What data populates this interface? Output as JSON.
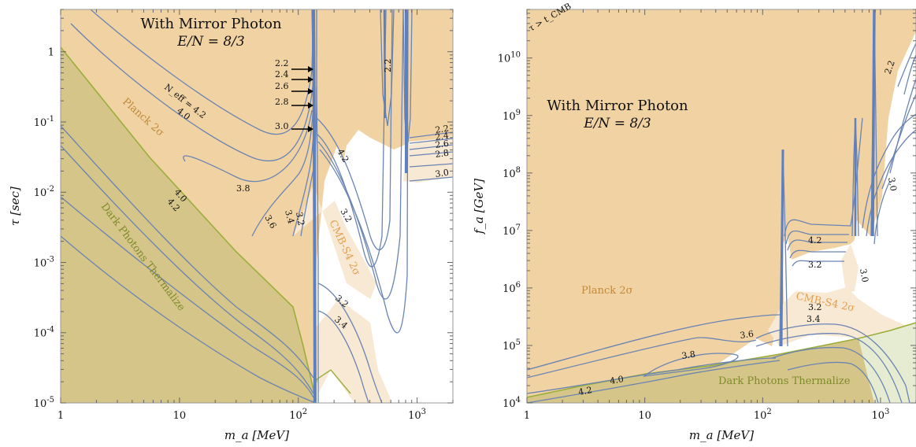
{
  "chart_data": [
    {
      "type": "area",
      "title": "With Mirror Photon",
      "subtitle": "E/N = 8/3",
      "xlabel": "m_a [MeV]",
      "ylabel": "τ [sec]",
      "xscale": "log",
      "yscale": "log",
      "xlim": [
        1,
        2000
      ],
      "ylim": [
        1e-05,
        4
      ],
      "x_ticks": [
        "1",
        "10",
        "10^2",
        "10^3"
      ],
      "y_ticks": [
        "10^-5",
        "10^-4",
        "10^-3",
        "10^-2",
        "10^-1",
        "1"
      ],
      "regions": [
        "Planck 2σ",
        "CMB-S4 2σ",
        "Dark Photons Thermalize"
      ],
      "contour_label": "N_eff = 4.2",
      "contour_levels": [
        "4.2",
        "4.0",
        "3.8",
        "3.6",
        "3.4",
        "3.2",
        "3.0",
        "2.8",
        "2.6",
        "2.4",
        "2.2"
      ],
      "arrow_labels": [
        "2.2",
        "2.4",
        "2.6",
        "2.8",
        "3.0"
      ],
      "colors": {
        "planck": "#f1d3a3",
        "cmb": "#f8e9d4",
        "thermal": "#d5c588",
        "contour": "#6a84b3",
        "green": "#9aae3a"
      }
    },
    {
      "type": "area",
      "title": "With Mirror Photon",
      "subtitle": "E/N = 8/3",
      "xlabel": "m_a [MeV]",
      "ylabel": "f_a [GeV]",
      "xscale": "log",
      "yscale": "log",
      "xlim": [
        1,
        2000
      ],
      "ylim": [
        10000,
        70000000000
      ],
      "x_ticks": [
        "1",
        "10",
        "10^2",
        "10^3"
      ],
      "y_ticks": [
        "10^4",
        "10^5",
        "10^6",
        "10^7",
        "10^8",
        "10^9",
        "10^10"
      ],
      "regions": [
        "Planck 2σ",
        "CMB-S4 2σ",
        "Dark Photons Thermalize"
      ],
      "corner_label": "τ > t_CMB",
      "contour_levels": [
        "4.2",
        "4.0",
        "3.8",
        "3.6",
        "3.4",
        "3.2",
        "3.0",
        "2.2"
      ],
      "colors": {
        "planck": "#f1d3a3",
        "cmb": "#f8e9d4",
        "thermal": "#d5c588",
        "contour": "#6a84b3",
        "green": "#9aae3a"
      }
    }
  ]
}
